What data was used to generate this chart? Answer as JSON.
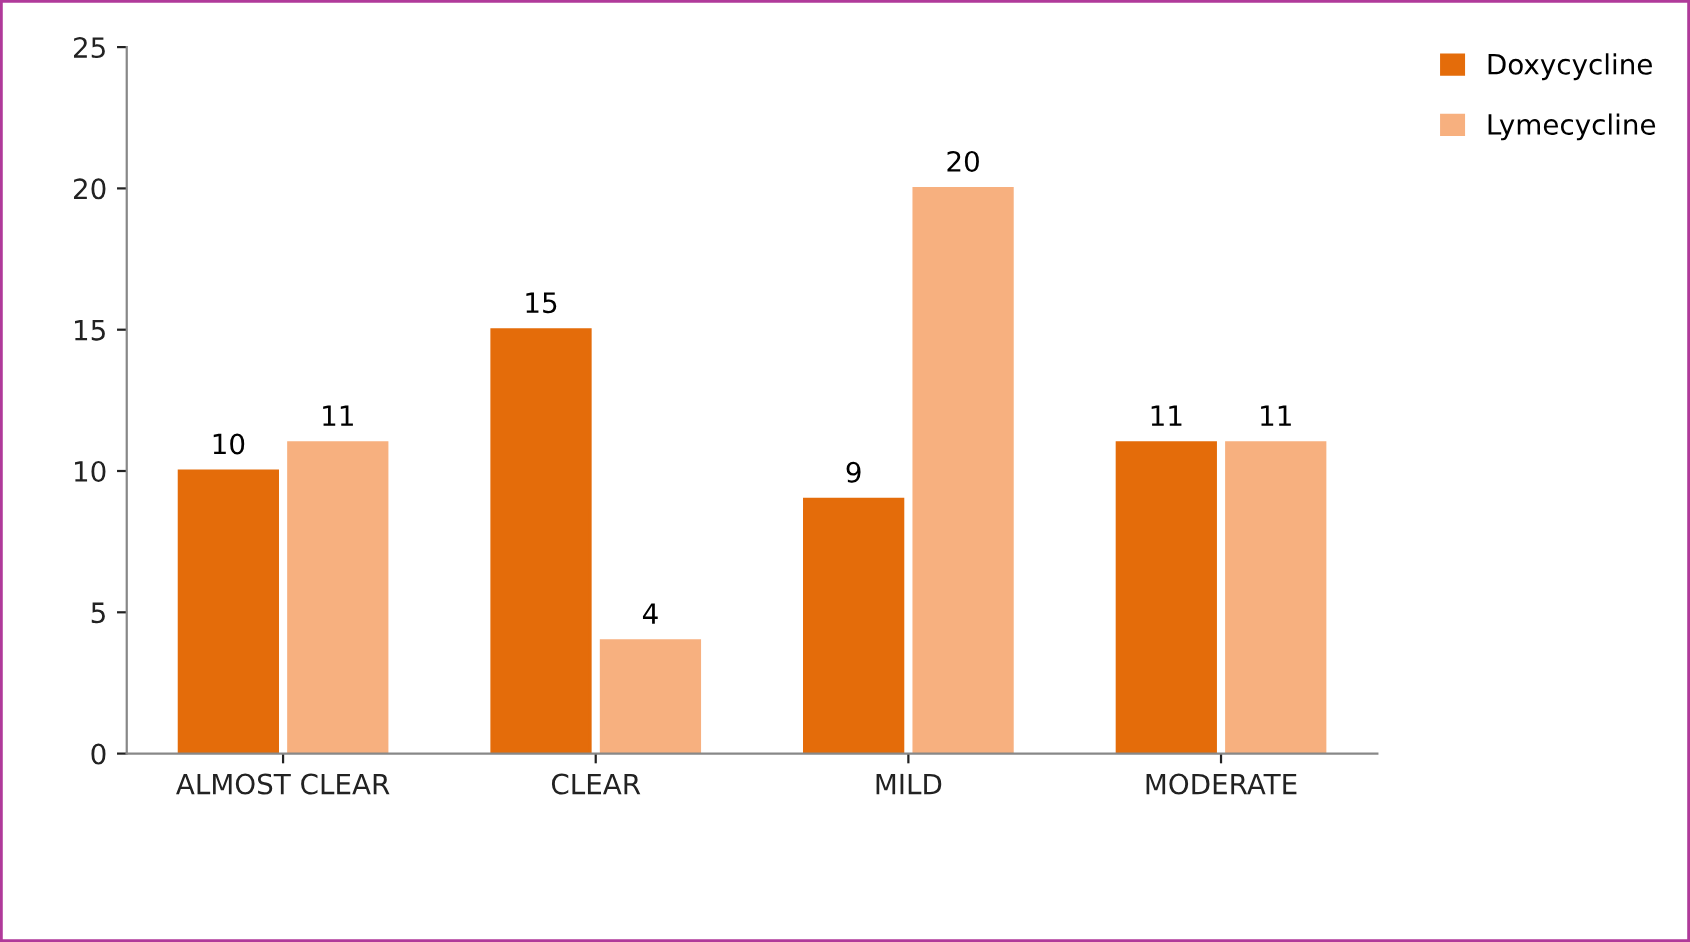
{
  "chart_data": {
    "type": "bar",
    "categories": [
      "ALMOST CLEAR",
      "CLEAR",
      "MILD",
      "MODERATE"
    ],
    "series": [
      {
        "name": "Doxycycline",
        "color": "#e46c0a",
        "values": [
          10,
          15,
          9,
          11
        ]
      },
      {
        "name": "Lymecycline",
        "color": "#f7b07f",
        "values": [
          11,
          4,
          20,
          11
        ]
      }
    ],
    "ylim": [
      0,
      25
    ],
    "yticks": [
      0,
      5,
      10,
      15,
      20,
      25
    ],
    "grid": false,
    "legend": "top right",
    "data_labels": true
  }
}
